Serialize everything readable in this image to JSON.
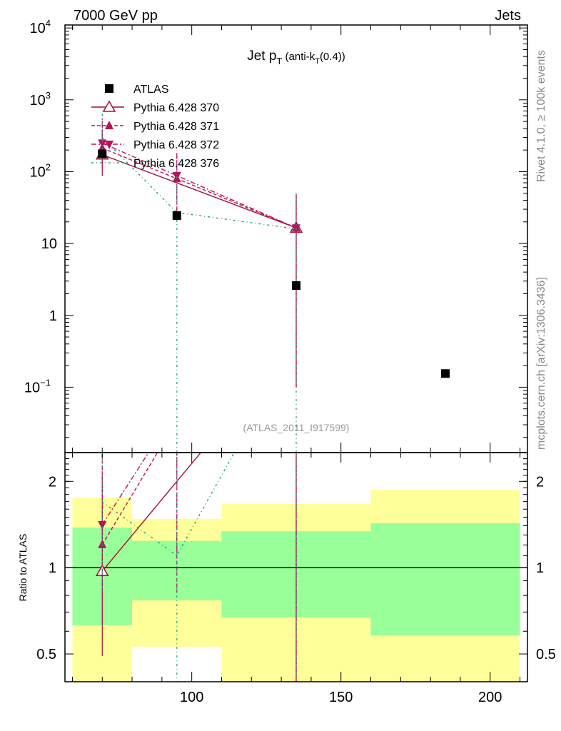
{
  "header": {
    "left": "7000 GeV pp",
    "right": "Jets"
  },
  "side": {
    "rivet": "Rivet 4.1.0, ≥ 100k events",
    "mcplots": "mcplots.cern.ch [arXiv:1306.3436]"
  },
  "colors": {
    "atlas": "#000000",
    "p370": "#a50f2e",
    "p371": "#b8125a",
    "p372": "#b8125a",
    "p376": "#1a9e8a",
    "green": "#99ff99",
    "yellow": "#ffff99"
  },
  "chart_data": [
    {
      "type": "scatter",
      "title": "Jet p_T (anti-k_T(0.4))",
      "title_main": "Jet p",
      "title_sub1": "T",
      "title_mid": " (anti-k",
      "title_sub2": "T",
      "title_end": "(0.4))",
      "analysis": "(ATLAS_2011_I917599)",
      "yscale": "log",
      "ylim": [
        0.0123,
        11000
      ],
      "xlim": [
        57.5,
        212.5
      ],
      "yticks": [
        {
          "v": 10000,
          "b": "10",
          "e": "4"
        },
        {
          "v": 1000,
          "b": "10",
          "e": "3"
        },
        {
          "v": 100,
          "b": "10",
          "e": "2"
        },
        {
          "v": 10,
          "b": "10",
          "e": ""
        },
        {
          "v": 1,
          "b": "1",
          "e": ""
        },
        {
          "v": 0.1,
          "b": "10",
          "e": "−1"
        }
      ],
      "legend_position": "top-left",
      "series": [
        {
          "name": "ATLAS",
          "marker": "square",
          "x": [
            70,
            95,
            135,
            185
          ],
          "y": [
            177,
            24.5,
            2.6,
            0.155
          ],
          "err_lo": [
            0,
            0,
            0,
            0
          ],
          "err_hi": [
            0,
            0,
            0,
            0
          ]
        },
        {
          "name": "Pythia 6.428 370",
          "marker": "open-triangle",
          "dash": "",
          "x": [
            70,
            135
          ],
          "y": [
            172,
            16.5
          ],
          "err_lo": [
            85,
            16.4
          ],
          "err_hi": [
            200,
            33
          ]
        },
        {
          "name": "Pythia 6.428 371",
          "marker": "triangle",
          "dash": "5,3",
          "x": [
            70,
            95,
            135
          ],
          "y": [
            213,
            80,
            16.5
          ],
          "err_lo": [
            100,
            60,
            16.4
          ],
          "err_hi": [
            300,
            100,
            33
          ]
        },
        {
          "name": "Pythia 6.428 372",
          "marker": "triangle-down",
          "dash": "7,3,2,3",
          "x": [
            70,
            95,
            135
          ],
          "y": [
            250,
            88,
            16.5
          ],
          "err_lo": [
            100,
            60,
            16.4
          ],
          "err_hi": [
            330,
            110,
            33
          ]
        },
        {
          "name": "Pythia 6.428 376",
          "marker": "none",
          "dash": "3,4,1,4",
          "x": [
            70,
            95,
            135
          ],
          "y": [
            300,
            27,
            16
          ],
          "err_lo": [
            150,
            26.99,
            15.99
          ],
          "err_hi": [
            400,
            60,
            32
          ]
        }
      ]
    },
    {
      "type": "area",
      "ylabel": "Ratio to ATLAS",
      "yscale": "log",
      "ylim": [
        0.4,
        2.52
      ],
      "xlim": [
        57.5,
        212.5
      ],
      "xticks": [
        100,
        150,
        200
      ],
      "yticks": [
        0.5,
        1,
        2
      ],
      "bands": [
        {
          "x0": 60,
          "x1": 80,
          "green": [
            0.63,
            1.38
          ],
          "yellow": [
            0.3,
            1.75
          ]
        },
        {
          "x0": 80,
          "x1": 110,
          "green": [
            0.77,
            1.24
          ],
          "yellow": [
            0.53,
            1.48
          ]
        },
        {
          "x0": 110,
          "x1": 160,
          "green": [
            0.67,
            1.34
          ],
          "yellow": [
            0.3,
            1.67
          ]
        },
        {
          "x0": 160,
          "x1": 210,
          "green": [
            0.58,
            1.43
          ],
          "yellow": [
            0.3,
            1.87
          ]
        }
      ]
    }
  ]
}
